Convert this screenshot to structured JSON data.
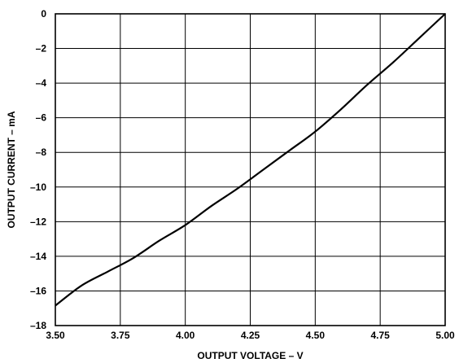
{
  "chart_data": {
    "type": "line",
    "title": "",
    "xlabel": "OUTPUT VOLTAGE – V",
    "ylabel": "OUTPUT CURRENT – mA",
    "xlim": [
      3.5,
      5.0
    ],
    "ylim": [
      -18,
      0
    ],
    "x_ticks": [
      "3.50",
      "3.75",
      "4.00",
      "4.25",
      "4.50",
      "4.75",
      "5.00"
    ],
    "y_ticks": [
      "0",
      "–2",
      "–4",
      "–6",
      "–8",
      "–10",
      "–12",
      "–14",
      "–16",
      "–18"
    ],
    "grid": true,
    "series": [
      {
        "x": [
          3.5,
          3.6,
          3.7,
          3.8,
          3.9,
          4.0,
          4.1,
          4.2,
          4.3,
          4.4,
          4.5,
          4.6,
          4.7,
          4.8,
          4.9,
          5.0
        ],
        "y": [
          -16.85,
          -15.7,
          -14.9,
          -14.1,
          -13.1,
          -12.2,
          -11.1,
          -10.1,
          -9.0,
          -7.9,
          -6.8,
          -5.5,
          -4.1,
          -2.8,
          -1.4,
          0.0
        ]
      }
    ]
  }
}
